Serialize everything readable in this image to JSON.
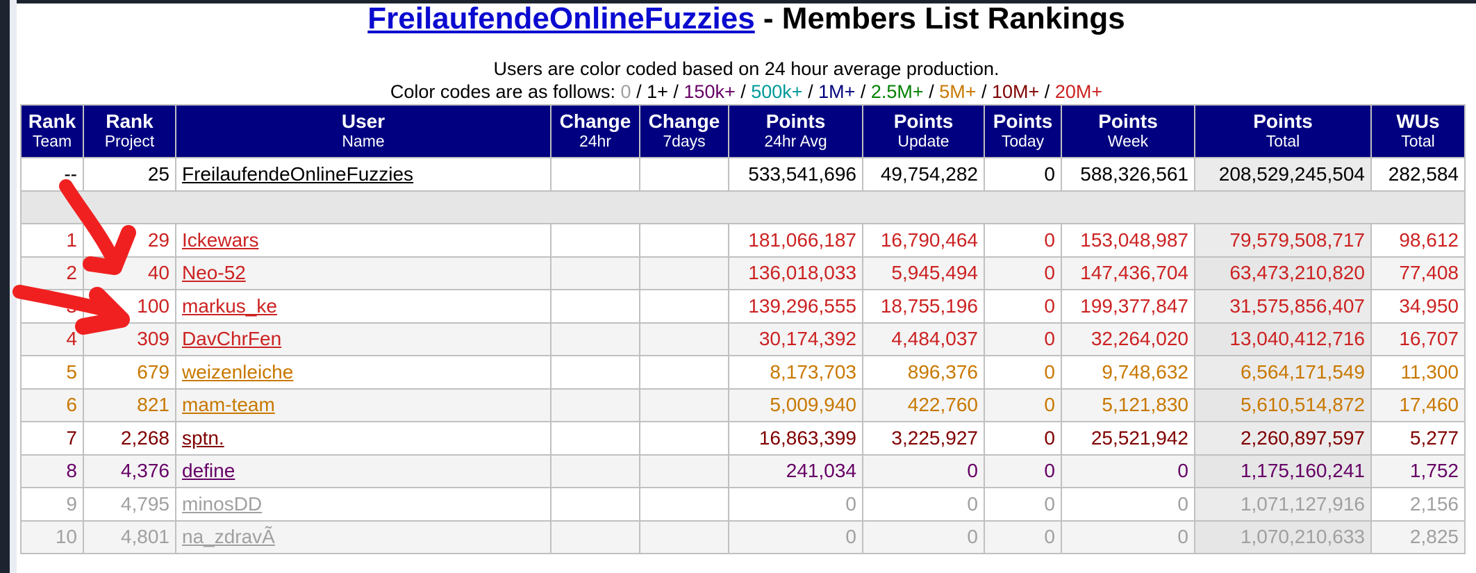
{
  "title": {
    "team_link": "FreilaufendeOnlineFuzzies",
    "rest": " - Members List Rankings"
  },
  "info": {
    "line1": "Users are color coded based on 24 hour average production.",
    "line2_prefix": "Color codes are as follows: ",
    "codes": [
      {
        "label": "0",
        "color": "#a0a0a0"
      },
      {
        "label": "1+",
        "color": "#000000"
      },
      {
        "label": "150k+",
        "color": "#660066"
      },
      {
        "label": "500k+",
        "color": "#009999"
      },
      {
        "label": "1M+",
        "color": "#000080"
      },
      {
        "label": "2.5M+",
        "color": "#008000"
      },
      {
        "label": "5M+",
        "color": "#c87800"
      },
      {
        "label": "10M+",
        "color": "#800000"
      },
      {
        "label": "20M+",
        "color": "#cc2222"
      }
    ],
    "separator": " / "
  },
  "table": {
    "headers": [
      {
        "top": "Rank",
        "sub": "Team"
      },
      {
        "top": "Rank",
        "sub": "Project"
      },
      {
        "top": "User",
        "sub": "Name"
      },
      {
        "top": "Change",
        "sub": "24hr"
      },
      {
        "top": "Change",
        "sub": "7days"
      },
      {
        "top": "Points",
        "sub": "24hr Avg"
      },
      {
        "top": "Points",
        "sub": "Update"
      },
      {
        "top": "Points",
        "sub": "Today"
      },
      {
        "top": "Points",
        "sub": "Week"
      },
      {
        "top": "Points",
        "sub": "Total"
      },
      {
        "top": "WUs",
        "sub": "Total"
      }
    ],
    "team_row": {
      "rank_team": "--",
      "rank_project": "25",
      "user": "FreilaufendeOnlineFuzzies",
      "change24": "",
      "change7": "",
      "avg24": "533,541,696",
      "update": "49,754,282",
      "today": "0",
      "week": "588,326,561",
      "total": "208,529,245,504",
      "wus": "282,584",
      "color": "#000000"
    },
    "rows": [
      {
        "rank_team": "1",
        "rank_project": "29",
        "user": "Ickewars",
        "change24": "",
        "change7": "",
        "avg24": "181,066,187",
        "update": "16,790,464",
        "today": "0",
        "week": "153,048,987",
        "total": "79,579,508,717",
        "wus": "98,612",
        "color": "#cc2222"
      },
      {
        "rank_team": "2",
        "rank_project": "40",
        "user": "Neo-52",
        "change24": "",
        "change7": "",
        "avg24": "136,018,033",
        "update": "5,945,494",
        "today": "0",
        "week": "147,436,704",
        "total": "63,473,210,820",
        "wus": "77,408",
        "color": "#cc2222"
      },
      {
        "rank_team": "3",
        "rank_project": "100",
        "user": "markus_ke",
        "change24": "",
        "change7": "",
        "avg24": "139,296,555",
        "update": "18,755,196",
        "today": "0",
        "week": "199,377,847",
        "total": "31,575,856,407",
        "wus": "34,950",
        "color": "#cc2222"
      },
      {
        "rank_team": "4",
        "rank_project": "309",
        "user": "DavChrFen",
        "change24": "",
        "change7": "",
        "avg24": "30,174,392",
        "update": "4,484,037",
        "today": "0",
        "week": "32,264,020",
        "total": "13,040,412,716",
        "wus": "16,707",
        "color": "#cc2222"
      },
      {
        "rank_team": "5",
        "rank_project": "679",
        "user": "weizenleiche",
        "change24": "",
        "change7": "",
        "avg24": "8,173,703",
        "update": "896,376",
        "today": "0",
        "week": "9,748,632",
        "total": "6,564,171,549",
        "wus": "11,300",
        "color": "#c87800"
      },
      {
        "rank_team": "6",
        "rank_project": "821",
        "user": "mam-team",
        "change24": "",
        "change7": "",
        "avg24": "5,009,940",
        "update": "422,760",
        "today": "0",
        "week": "5,121,830",
        "total": "5,610,514,872",
        "wus": "17,460",
        "color": "#c87800"
      },
      {
        "rank_team": "7",
        "rank_project": "2,268",
        "user": "sptn.",
        "change24": "",
        "change7": "",
        "avg24": "16,863,399",
        "update": "3,225,927",
        "today": "0",
        "week": "25,521,942",
        "total": "2,260,897,597",
        "wus": "5,277",
        "color": "#800000"
      },
      {
        "rank_team": "8",
        "rank_project": "4,376",
        "user": "define",
        "change24": "",
        "change7": "",
        "avg24": "241,034",
        "update": "0",
        "today": "0",
        "week": "0",
        "total": "1,175,160,241",
        "wus": "1,752",
        "color": "#660066"
      },
      {
        "rank_team": "9",
        "rank_project": "4,795",
        "user": "minosDD",
        "change24": "",
        "change7": "",
        "avg24": "0",
        "update": "0",
        "today": "0",
        "week": "0",
        "total": "1,071,127,916",
        "wus": "2,156",
        "color": "#a0a0a0"
      },
      {
        "rank_team": "10",
        "rank_project": "4,801",
        "user": "na_zdravÃ",
        "change24": "",
        "change7": "",
        "avg24": "0",
        "update": "0",
        "today": "0",
        "week": "0",
        "total": "1,070,210,633",
        "wus": "2,825",
        "color": "#a0a0a0"
      }
    ]
  },
  "annotation": {
    "color": "#f02020"
  }
}
